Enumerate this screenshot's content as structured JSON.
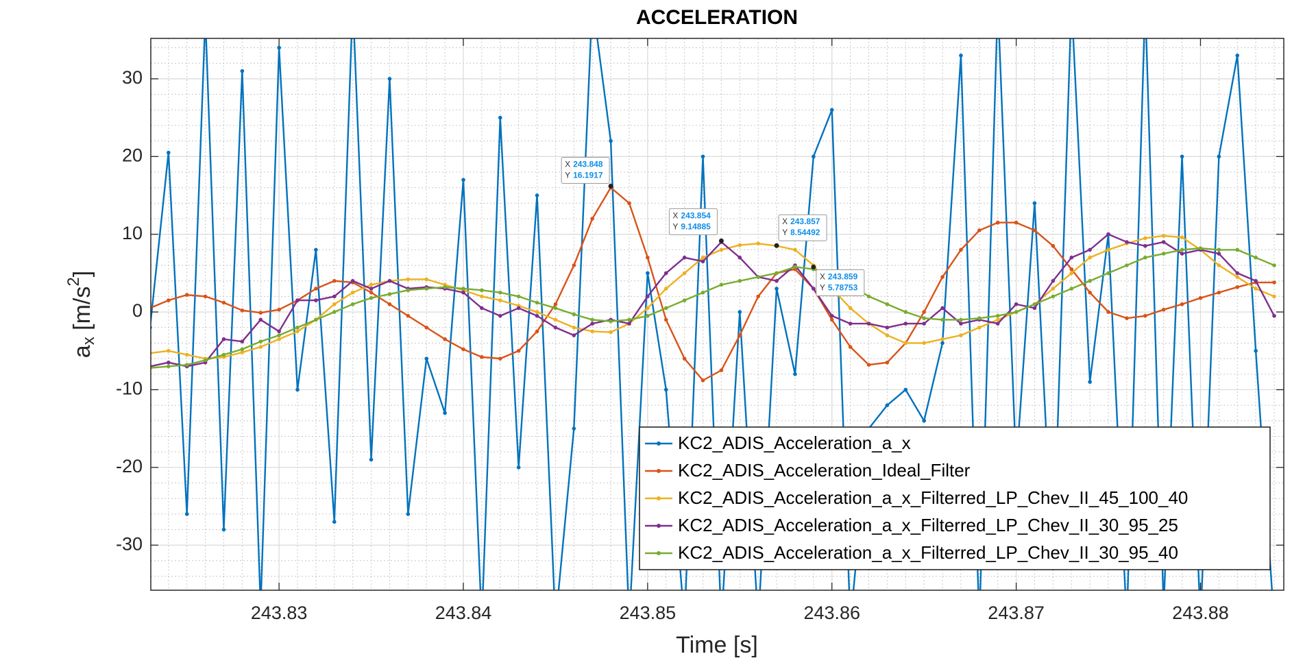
{
  "chart_data": {
    "type": "line",
    "title": "ACCELERATION",
    "xlabel": "Time [s]",
    "ylabel_parts": [
      "a",
      "x",
      " [m/s",
      "2",
      "]"
    ],
    "x": [
      243.823,
      243.824,
      243.825,
      243.826,
      243.827,
      243.828,
      243.829,
      243.83,
      243.831,
      243.832,
      243.833,
      243.834,
      243.835,
      243.836,
      243.837,
      243.838,
      243.839,
      243.84,
      243.841,
      243.842,
      243.843,
      243.844,
      243.845,
      243.846,
      243.847,
      243.848,
      243.849,
      243.85,
      243.851,
      243.852,
      243.853,
      243.854,
      243.855,
      243.856,
      243.857,
      243.858,
      243.859,
      243.86,
      243.861,
      243.862,
      243.863,
      243.864,
      243.865,
      243.866,
      243.867,
      243.868,
      243.869,
      243.87,
      243.871,
      243.872,
      243.873,
      243.874,
      243.875,
      243.876,
      243.877,
      243.878,
      243.879,
      243.88,
      243.881,
      243.882,
      243.883,
      243.884
    ],
    "series": [
      {
        "name": "KC2_ADIS_Acceleration_a_x",
        "color": "#0072BD",
        "values": [
          -2,
          20.5,
          -26,
          38,
          -28,
          31,
          -38,
          34,
          -10,
          8,
          -27,
          40,
          -19,
          30,
          -26,
          -6,
          -13,
          17,
          -40,
          25,
          -20,
          15,
          -40,
          -15,
          40,
          22,
          -40,
          5,
          -10,
          -40,
          20,
          -40,
          0,
          -40,
          3,
          -8,
          20,
          26,
          -40,
          -15,
          -12,
          -10,
          -14,
          -4,
          33,
          -40,
          40,
          -20,
          14,
          -33,
          40,
          -9,
          10,
          -40,
          40,
          -38,
          20,
          -40,
          20,
          33,
          -5,
          -40
        ]
      },
      {
        "name": "KC2_ADIS_Acceleration_Ideal_Filter",
        "color": "#D95319",
        "values": [
          0.5,
          1.5,
          2.2,
          2.0,
          1.2,
          0.2,
          -0.1,
          0.3,
          1.5,
          3.0,
          4.0,
          3.8,
          2.5,
          1.0,
          -0.5,
          -2.0,
          -3.5,
          -4.8,
          -5.8,
          -6.0,
          -5.0,
          -2.5,
          1.0,
          6.0,
          12.0,
          16.0,
          14.0,
          7.0,
          -1.0,
          -6.0,
          -8.8,
          -7.5,
          -3.0,
          2.0,
          5.0,
          5.5,
          3.0,
          -1.0,
          -4.5,
          -6.8,
          -6.5,
          -4.0,
          0.0,
          4.5,
          8.0,
          10.5,
          11.5,
          11.5,
          10.5,
          8.5,
          5.5,
          2.5,
          0.0,
          -0.8,
          -0.5,
          0.3,
          1.0,
          1.8,
          2.5,
          3.2,
          3.8,
          3.8
        ]
      },
      {
        "name": "KC2_ADIS_Acceleration_a_x_Filterred_LP_Chev_II_45_100_40",
        "color": "#EDB120",
        "values": [
          -5.3,
          -5.0,
          -5.5,
          -6.0,
          -5.8,
          -5.2,
          -4.5,
          -3.5,
          -2.5,
          -1.0,
          1.0,
          2.5,
          3.5,
          4.0,
          4.2,
          4.2,
          3.5,
          2.8,
          2.0,
          1.5,
          0.8,
          0.0,
          -1.0,
          -2.0,
          -2.5,
          -2.6,
          -1.5,
          0.5,
          3.0,
          5.0,
          7.0,
          8.0,
          8.6,
          8.8,
          8.5,
          8.0,
          6.0,
          3.0,
          0.5,
          -1.5,
          -3.0,
          -4.0,
          -4.0,
          -3.5,
          -3.0,
          -2.0,
          -1.0,
          0.0,
          1.0,
          3.0,
          5.0,
          7.0,
          8.0,
          8.8,
          9.5,
          9.8,
          9.6,
          8.0,
          6.0,
          4.5,
          3.0,
          2.0
        ]
      },
      {
        "name": "KC2_ADIS_Acceleration_a_x_Filterred_LP_Chev_II_30_95_25",
        "color": "#7E2F8E",
        "values": [
          -7.0,
          -6.5,
          -7.0,
          -6.5,
          -3.5,
          -3.8,
          -1.0,
          -2.5,
          1.5,
          1.5,
          2.0,
          4.0,
          3.0,
          4.0,
          3.0,
          3.2,
          3.0,
          2.5,
          0.5,
          -0.5,
          0.5,
          -0.5,
          -2.0,
          -3.0,
          -1.5,
          -1.0,
          -1.5,
          2.0,
          5.0,
          7.0,
          6.5,
          9.0,
          7.0,
          4.5,
          4.0,
          6.0,
          3.0,
          -0.5,
          -1.5,
          -1.5,
          -2.0,
          -1.5,
          -1.5,
          0.5,
          -1.5,
          -1.0,
          -1.5,
          1.0,
          0.5,
          4.0,
          7.0,
          8.0,
          10.0,
          9.0,
          8.5,
          9.0,
          7.5,
          8.0,
          7.5,
          5.0,
          4.0,
          -0.5
        ]
      },
      {
        "name": "KC2_ADIS_Acceleration_a_x_Filterred_LP_Chev_II_30_95_40",
        "color": "#77AC30",
        "values": [
          -7.2,
          -7.0,
          -6.8,
          -6.2,
          -5.5,
          -4.8,
          -3.8,
          -3.0,
          -2.0,
          -1.0,
          0.0,
          1.0,
          1.8,
          2.3,
          2.8,
          3.0,
          3.2,
          3.0,
          2.8,
          2.5,
          2.0,
          1.2,
          0.5,
          -0.3,
          -1.0,
          -1.2,
          -1.0,
          -0.5,
          0.5,
          1.5,
          2.5,
          3.5,
          4.0,
          4.5,
          5.0,
          5.8,
          5.5,
          4.5,
          3.5,
          2.0,
          1.0,
          0.0,
          -0.8,
          -1.0,
          -1.0,
          -0.8,
          -0.5,
          0.0,
          1.0,
          2.0,
          3.0,
          4.0,
          5.0,
          6.0,
          7.0,
          7.5,
          8.0,
          8.2,
          8.0,
          8.0,
          7.0,
          6.0
        ]
      }
    ],
    "xlim": [
      243.82304,
      243.88452
    ],
    "xticks": [
      243.83,
      243.84,
      243.85,
      243.86,
      243.87,
      243.88
    ],
    "ylim": [
      -35.8,
      35.2
    ],
    "yticks": [
      -30,
      -20,
      -10,
      0,
      10,
      20,
      30
    ],
    "grid": true,
    "minor_grid": true,
    "legend": "lower right",
    "datatip_labels": [
      "X",
      "Y"
    ],
    "datatips": [
      {
        "x": 243.848,
        "y": 16.1917
      },
      {
        "x": 243.854,
        "y": 9.14885
      },
      {
        "x": 243.857,
        "y": 8.54492
      },
      {
        "x": 243.859,
        "y": 5.78753
      }
    ]
  }
}
